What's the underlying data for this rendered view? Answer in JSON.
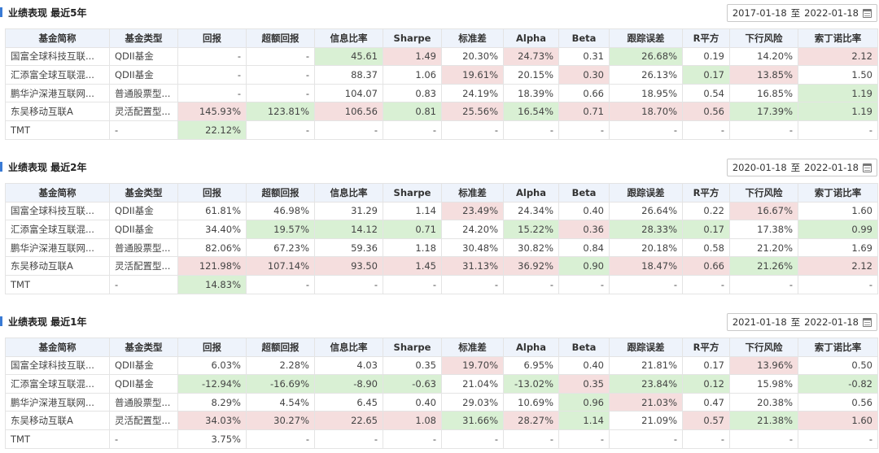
{
  "columns": [
    "基金简称",
    "基金类型",
    "回报",
    "超额回报",
    "信息比率",
    "Sharpe",
    "标准差",
    "Alpha",
    "Beta",
    "跟踪误差",
    "R平方",
    "下行风险",
    "索丁诺比率"
  ],
  "sections": [
    {
      "title": "业绩表现 最近5年",
      "date_from": "2017-01-18",
      "date_sep": "至",
      "date_to": "2022-01-18",
      "rows": [
        {
          "cells": [
            "国富全球科技互联...",
            "QDII基金",
            "-",
            "-",
            "45.61",
            "1.49",
            "20.30%",
            "24.73%",
            "0.31",
            "26.68%",
            "0.19",
            "14.20%",
            "2.12"
          ],
          "hl": [
            "",
            "",
            "",
            "",
            "green",
            "red",
            "",
            "red",
            "",
            "green",
            "",
            "",
            "red"
          ]
        },
        {
          "cells": [
            "汇添富全球互联混...",
            "QDII基金",
            "-",
            "-",
            "88.37",
            "1.06",
            "19.61%",
            "20.15%",
            "0.30",
            "26.13%",
            "0.17",
            "13.85%",
            "1.50"
          ],
          "hl": [
            "",
            "",
            "",
            "",
            "",
            "",
            "red",
            "",
            "red",
            "",
            "green",
            "red",
            ""
          ]
        },
        {
          "cells": [
            "鹏华沪深港互联网...",
            "普通股票型...",
            "-",
            "-",
            "104.07",
            "0.83",
            "24.19%",
            "18.39%",
            "0.66",
            "18.95%",
            "0.54",
            "16.85%",
            "1.19"
          ],
          "hl": [
            "",
            "",
            "",
            "",
            "",
            "",
            "",
            "",
            "",
            "",
            "",
            "",
            "green"
          ]
        },
        {
          "cells": [
            "东吴移动互联A",
            "灵活配置型...",
            "145.93%",
            "123.81%",
            "106.56",
            "0.81",
            "25.56%",
            "16.54%",
            "0.71",
            "18.70%",
            "0.56",
            "17.39%",
            "1.19"
          ],
          "hl": [
            "",
            "",
            "red",
            "green",
            "red",
            "green",
            "red",
            "green",
            "red",
            "red",
            "red",
            "green",
            "green"
          ]
        },
        {
          "cells": [
            "TMT",
            "-",
            "22.12%",
            "-",
            "-",
            "-",
            "-",
            "-",
            "-",
            "-",
            "-",
            "-",
            "-"
          ],
          "hl": [
            "",
            "",
            "green",
            "",
            "",
            "",
            "",
            "",
            "",
            "",
            "",
            "",
            ""
          ]
        }
      ]
    },
    {
      "title": "业绩表现 最近2年",
      "date_from": "2020-01-18",
      "date_sep": "至",
      "date_to": "2022-01-18",
      "rows": [
        {
          "cells": [
            "国富全球科技互联...",
            "QDII基金",
            "61.81%",
            "46.98%",
            "31.29",
            "1.14",
            "23.49%",
            "24.34%",
            "0.40",
            "26.64%",
            "0.22",
            "16.67%",
            "1.60"
          ],
          "hl": [
            "",
            "",
            "",
            "",
            "",
            "",
            "red",
            "",
            "",
            "",
            "",
            "red",
            ""
          ]
        },
        {
          "cells": [
            "汇添富全球互联混...",
            "QDII基金",
            "34.40%",
            "19.57%",
            "14.12",
            "0.71",
            "24.20%",
            "15.22%",
            "0.36",
            "28.33%",
            "0.17",
            "17.38%",
            "0.99"
          ],
          "hl": [
            "",
            "",
            "",
            "green",
            "green",
            "green",
            "",
            "green",
            "red",
            "green",
            "green",
            "",
            "green"
          ]
        },
        {
          "cells": [
            "鹏华沪深港互联网...",
            "普通股票型...",
            "82.06%",
            "67.23%",
            "59.36",
            "1.18",
            "30.48%",
            "30.82%",
            "0.84",
            "20.18%",
            "0.58",
            "21.20%",
            "1.69"
          ],
          "hl": [
            "",
            "",
            "",
            "",
            "",
            "",
            "",
            "",
            "",
            "",
            "",
            "",
            ""
          ]
        },
        {
          "cells": [
            "东吴移动互联A",
            "灵活配置型...",
            "121.98%",
            "107.14%",
            "93.50",
            "1.45",
            "31.13%",
            "36.92%",
            "0.90",
            "18.47%",
            "0.66",
            "21.26%",
            "2.12"
          ],
          "hl": [
            "",
            "",
            "red",
            "red",
            "red",
            "red",
            "red",
            "red",
            "green",
            "red",
            "red",
            "green",
            "red"
          ]
        },
        {
          "cells": [
            "TMT",
            "-",
            "14.83%",
            "-",
            "-",
            "-",
            "-",
            "-",
            "-",
            "-",
            "-",
            "-",
            "-"
          ],
          "hl": [
            "",
            "",
            "green",
            "",
            "",
            "",
            "",
            "",
            "",
            "",
            "",
            "",
            ""
          ]
        }
      ]
    },
    {
      "title": "业绩表现 最近1年",
      "date_from": "2021-01-18",
      "date_sep": "至",
      "date_to": "2022-01-18",
      "rows": [
        {
          "cells": [
            "国富全球科技互联...",
            "QDII基金",
            "6.03%",
            "2.28%",
            "4.03",
            "0.35",
            "19.70%",
            "6.95%",
            "0.40",
            "21.81%",
            "0.17",
            "13.96%",
            "0.50"
          ],
          "hl": [
            "",
            "",
            "",
            "",
            "",
            "",
            "red",
            "",
            "",
            "",
            "",
            "red",
            ""
          ]
        },
        {
          "cells": [
            "汇添富全球互联混...",
            "QDII基金",
            "-12.94%",
            "-16.69%",
            "-8.90",
            "-0.63",
            "21.04%",
            "-13.02%",
            "0.35",
            "23.84%",
            "0.12",
            "15.98%",
            "-0.82"
          ],
          "hl": [
            "",
            "",
            "green",
            "green",
            "green",
            "green",
            "",
            "green",
            "red",
            "green",
            "green",
            "",
            "green"
          ]
        },
        {
          "cells": [
            "鹏华沪深港互联网...",
            "普通股票型...",
            "8.29%",
            "4.54%",
            "6.45",
            "0.40",
            "29.03%",
            "10.69%",
            "0.96",
            "21.03%",
            "0.47",
            "20.38%",
            "0.56"
          ],
          "hl": [
            "",
            "",
            "",
            "",
            "",
            "",
            "",
            "",
            "green",
            "red",
            "",
            "",
            ""
          ]
        },
        {
          "cells": [
            "东吴移动互联A",
            "灵活配置型...",
            "34.03%",
            "30.27%",
            "22.65",
            "1.08",
            "31.66%",
            "28.27%",
            "1.14",
            "21.09%",
            "0.57",
            "21.38%",
            "1.60"
          ],
          "hl": [
            "",
            "",
            "red",
            "red",
            "red",
            "red",
            "green",
            "red",
            "green",
            "",
            "red",
            "green",
            "red"
          ]
        },
        {
          "cells": [
            "TMT",
            "-",
            "3.75%",
            "-",
            "-",
            "-",
            "-",
            "-",
            "-",
            "-",
            "-",
            "-",
            "-"
          ],
          "hl": [
            "",
            "",
            "",
            "",
            "",
            "",
            "",
            "",
            "",
            "",
            "",
            "",
            ""
          ]
        }
      ]
    }
  ]
}
